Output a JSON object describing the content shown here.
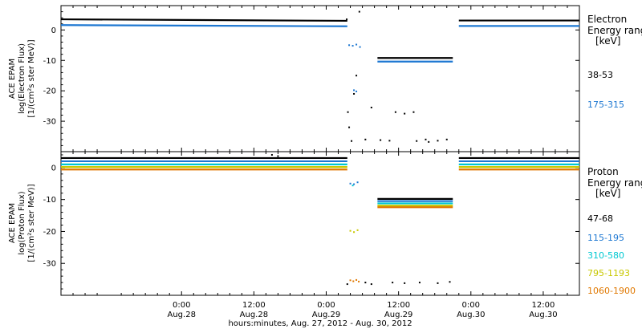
{
  "chart_data": {
    "type": "scatter",
    "x_axis_label": "hours:minutes, Aug. 27, 2012 - Aug. 30, 2012",
    "x_range_hours": [
      -20,
      66
    ],
    "x_ticks": [
      {
        "hour": 0,
        "time": "0:00",
        "date": "Aug.28"
      },
      {
        "hour": 12,
        "time": "12:00",
        "date": "Aug.28"
      },
      {
        "hour": 24,
        "time": "0:00",
        "date": "Aug.29"
      },
      {
        "hour": 36,
        "time": "12:00",
        "date": "Aug.29"
      },
      {
        "hour": 48,
        "time": "0:00",
        "date": "Aug.30"
      },
      {
        "hour": 60,
        "time": "12:00",
        "date": "Aug.30"
      }
    ],
    "panels": [
      {
        "id": "electron",
        "ylabel_lines": [
          "ACE EPAM",
          "log(Electron Flux)",
          "[1/(cm²s ster MeV)]"
        ],
        "ylim": [
          -40,
          8
        ],
        "yticks": [
          0,
          -10,
          -20,
          -30
        ],
        "legend_heading_lines": [
          "Electron",
          "Energy range",
          "[keV]"
        ],
        "series": [
          {
            "name": "38-53",
            "color": "#000000",
            "segments": [
              {
                "x": [
                  -20,
                  27.5
                ],
                "y": [
                  3.5,
                  3.0
                ]
              },
              {
                "x": [
                  32.5,
                  45
                ],
                "y": [
                  -9.2,
                  -9.2
                ]
              },
              {
                "x": [
                  46,
                  66
                ],
                "y": [
                  3.1,
                  3.1
                ]
              }
            ],
            "scatter": [
              [
                27.6,
                -27
              ],
              [
                27.8,
                -32
              ],
              [
                28.2,
                -36.5
              ],
              [
                28.6,
                -21
              ],
              [
                29,
                -15
              ],
              [
                29.5,
                6
              ],
              [
                30.5,
                -36
              ],
              [
                31.5,
                -25.5
              ],
              [
                33,
                -36.2
              ],
              [
                34.5,
                -36.4
              ],
              [
                35.5,
                -27
              ],
              [
                37,
                -27.5
              ],
              [
                38.5,
                -27
              ],
              [
                39,
                -36.5
              ],
              [
                40.5,
                -36
              ],
              [
                41,
                -36.8
              ],
              [
                42.5,
                -36.4
              ],
              [
                44,
                -36
              ],
              [
                27.4,
                3.5
              ]
            ]
          },
          {
            "name": "175-315",
            "color": "#1e78d2",
            "segments": [
              {
                "x": [
                  -20,
                  27.5
                ],
                "y": [
                  1.6,
                  1.2
                ]
              },
              {
                "x": [
                  32.5,
                  45
                ],
                "y": [
                  -10.4,
                  -10.4
                ]
              },
              {
                "x": [
                  46,
                  66
                ],
                "y": [
                  1.3,
                  1.3
                ]
              }
            ],
            "scatter": [
              [
                27.8,
                -5
              ],
              [
                28.4,
                -5.2
              ],
              [
                29,
                -4.8
              ],
              [
                28.6,
                -19.8
              ],
              [
                29,
                -20.2
              ],
              [
                29.6,
                -5.6
              ]
            ]
          }
        ]
      },
      {
        "id": "proton",
        "ylabel_lines": [
          "ACE EPAM",
          "log(Proton Flux)",
          "[1/(cm²s ster MeV)]"
        ],
        "ylim": [
          -40,
          5
        ],
        "yticks": [
          0,
          -10,
          -20,
          -30
        ],
        "legend_heading_lines": [
          "Proton",
          "Energy range",
          "[keV]"
        ],
        "series": [
          {
            "name": "47-68",
            "color": "#000000",
            "segments": [
              {
                "x": [
                  -20,
                  27.5
                ],
                "y": [
                  3.0,
                  3.0
                ]
              },
              {
                "x": [
                  32.5,
                  45
                ],
                "y": [
                  -9.8,
                  -9.8
                ]
              },
              {
                "x": [
                  46,
                  66
                ],
                "y": [
                  3.0,
                  3.0
                ]
              }
            ],
            "scatter": [
              [
                15,
                4
              ],
              [
                16,
                3.6
              ],
              [
                27.5,
                -36.5
              ],
              [
                30.5,
                -36
              ],
              [
                31.5,
                -36.5
              ],
              [
                35,
                -36
              ],
              [
                37,
                -36.2
              ],
              [
                39.5,
                -36
              ],
              [
                42.5,
                -36.2
              ],
              [
                44.5,
                -35.8
              ]
            ]
          },
          {
            "name": "115-195",
            "color": "#1e78d2",
            "segments": [
              {
                "x": [
                  -20,
                  27.5
                ],
                "y": [
                  2.0,
                  2.0
                ]
              },
              {
                "x": [
                  32.5,
                  45
                ],
                "y": [
                  -10.5,
                  -10.5
                ]
              },
              {
                "x": [
                  46,
                  66
                ],
                "y": [
                  2.0,
                  2.0
                ]
              }
            ],
            "scatter": [
              [
                28,
                -5
              ],
              [
                28.6,
                -5.2
              ],
              [
                29.2,
                -4.6
              ]
            ]
          },
          {
            "name": "310-580",
            "color": "#00c8d2",
            "segments": [
              {
                "x": [
                  -20,
                  27.5
                ],
                "y": [
                  1.0,
                  1.0
                ]
              },
              {
                "x": [
                  32.5,
                  45
                ],
                "y": [
                  -11.2,
                  -11.2
                ]
              },
              {
                "x": [
                  46,
                  66
                ],
                "y": [
                  1.0,
                  1.0
                ]
              }
            ],
            "scatter": [
              [
                28.4,
                -5.6
              ]
            ]
          },
          {
            "name": "795-1193",
            "color": "#c8c800",
            "segments": [
              {
                "x": [
                  -20,
                  27.5
                ],
                "y": [
                  0.2,
                  0.2
                ]
              },
              {
                "x": [
                  32.5,
                  45
                ],
                "y": [
                  -11.9,
                  -11.9
                ]
              },
              {
                "x": [
                  46,
                  66
                ],
                "y": [
                  0.2,
                  0.2
                ]
              }
            ],
            "scatter": [
              [
                28,
                -19.8
              ],
              [
                28.6,
                -20.2
              ],
              [
                29.2,
                -19.6
              ]
            ]
          },
          {
            "name": "1060-1900",
            "color": "#e07800",
            "segments": [
              {
                "x": [
                  -20,
                  27.5
                ],
                "y": [
                  -0.6,
                  -0.6
                ]
              },
              {
                "x": [
                  32.5,
                  45
                ],
                "y": [
                  -12.4,
                  -12.4
                ]
              },
              {
                "x": [
                  46,
                  66
                ],
                "y": [
                  -0.6,
                  -0.6
                ]
              }
            ],
            "scatter": [
              [
                28,
                -35.3
              ],
              [
                28.5,
                -35.6
              ],
              [
                29,
                -35.2
              ],
              [
                29.4,
                -35.7
              ]
            ]
          }
        ]
      }
    ]
  }
}
